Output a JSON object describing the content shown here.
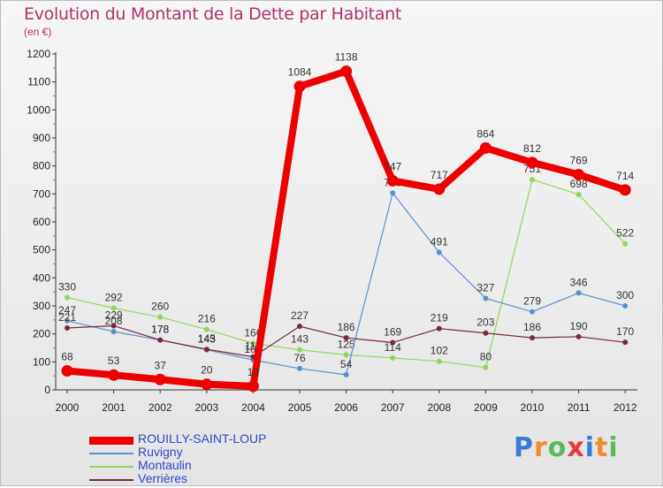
{
  "header": {
    "title": "Evolution du Montant de la Dette par Habitant",
    "unit": "(en €)"
  },
  "logo": {
    "text": "Proxiti",
    "colors": [
      "#3a7bd5",
      "#f28c28",
      "#5cb85c",
      "#e53935",
      "#3a7bd5",
      "#f28c28",
      "#5cb85c"
    ]
  },
  "chart_data": {
    "type": "line",
    "x": [
      "2000",
      "2001",
      "2002",
      "2003",
      "2004",
      "2005",
      "2006",
      "2007",
      "2008",
      "2009",
      "2010",
      "2011",
      "2012"
    ],
    "ylim": [
      0,
      1200
    ],
    "yticks": [
      0,
      100,
      200,
      300,
      400,
      500,
      600,
      700,
      800,
      900,
      1000,
      1100,
      1200
    ],
    "grid": false,
    "legend": "bottom-left",
    "series": [
      {
        "name": "Montaulin",
        "color": "#8ed65a",
        "values": [
          330,
          292,
          260,
          216,
          166,
          143,
          125,
          114,
          102,
          80,
          751,
          698,
          522
        ],
        "labels": [
          "330",
          "292",
          "260",
          "216",
          "166",
          "143",
          "125",
          "114",
          "102",
          "80",
          "751",
          "698",
          "522"
        ]
      },
      {
        "name": "Ruvigny",
        "color": "#5a8fd0",
        "values": [
          247,
          208,
          178,
          143,
          107,
          76,
          54,
          703,
          491,
          327,
          279,
          346,
          300
        ],
        "labels": [
          "247",
          "208",
          "178",
          "143",
          "107",
          "76",
          "54",
          "703",
          "491",
          "327",
          "279",
          "346",
          "300"
        ]
      },
      {
        "name": "Verrières",
        "color": "#7a2a3a",
        "values": [
          221,
          229,
          178,
          145,
          118,
          227,
          186,
          169,
          219,
          203,
          186,
          190,
          170
        ],
        "labels": [
          "221",
          "229",
          "178",
          "145",
          "118",
          "227",
          "186",
          "169",
          "219",
          "203",
          "186",
          "190",
          "170"
        ]
      },
      {
        "name": "ROUILLY-SAINT-LOUP",
        "color": "#ee0000",
        "values": [
          68,
          53,
          37,
          20,
          13,
          1084,
          1138,
          747,
          717,
          864,
          812,
          769,
          714
        ],
        "labels": [
          "68",
          "53",
          "37",
          "20",
          "13",
          "1084",
          "1138",
          "747",
          "717",
          "864",
          "812",
          "769",
          "714"
        ]
      }
    ],
    "legend_order": [
      "ROUILLY-SAINT-LOUP",
      "Ruvigny",
      "Montaulin",
      "Verrières"
    ]
  }
}
